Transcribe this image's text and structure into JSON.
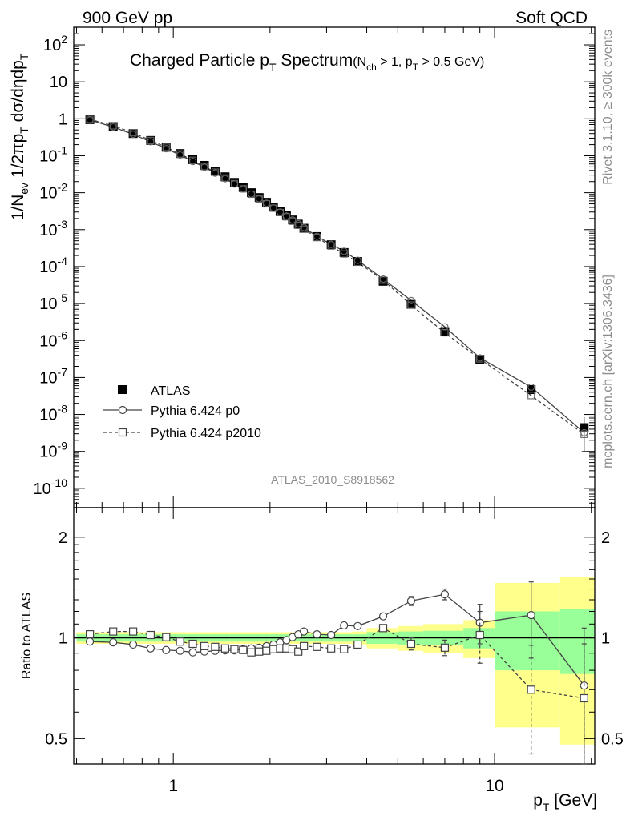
{
  "header": {
    "left": "900 GeV pp",
    "right": "Soft QCD"
  },
  "side": {
    "rivet": "Rivet 3.1.10, ≥ 300k events",
    "mcplots": "mcplots.cern.ch [arXiv:1306.3436]"
  },
  "main_title": {
    "text": "Charged Particle p",
    "sub": "T",
    "rest": " Spectrum",
    "cond_a": "(N",
    "cond_sub": "ch",
    "cond_b": " > 1, p",
    "cond_sub2": "T",
    "cond_c": " > 0.5 GeV)"
  },
  "analysis_id": "ATLAS_2010_S8918562",
  "ylabel_main": {
    "a": "1/N",
    "s1": "ev",
    "b": " 1/2πp",
    "s2": "T",
    "c": " dσ/dηdp",
    "s3": "T"
  },
  "ylabel_ratio": "Ratio to ATLAS",
  "xlabel": {
    "a": "p",
    "s": "T",
    "b": "  [GeV]"
  },
  "legend": {
    "placement": "bottom-left",
    "entries": [
      {
        "name": "ATLAS",
        "style": "filled-square"
      },
      {
        "name": "Pythia 6.424 p0",
        "style": "solid-circle"
      },
      {
        "name": "Pythia 6.424 p2010",
        "style": "dashed-open-square"
      }
    ]
  },
  "colors": {
    "band_inner": "#99ff99",
    "band_outer": "#ffff8c",
    "line": "#444444"
  },
  "chart_data": [
    {
      "type": "scatter",
      "panel": "spectrum",
      "x_scale": "log",
      "y_scale": "log",
      "xlim": [
        0.49,
        20.5
      ],
      "ylim": [
        3e-11,
        300
      ],
      "xticks": [
        1,
        10
      ],
      "xtick_labels": [
        "1",
        "10"
      ],
      "yticks": [
        1e-10,
        1e-09,
        1e-08,
        1e-07,
        1e-06,
        1e-05,
        0.0001,
        0.001,
        0.01,
        0.1,
        1,
        10,
        100
      ],
      "ytick_labels": [
        {
          "b": "10",
          "e": "-10"
        },
        {
          "b": "10",
          "e": "-9"
        },
        {
          "b": "10",
          "e": "-8"
        },
        {
          "b": "10",
          "e": "-7"
        },
        {
          "b": "10",
          "e": "-6"
        },
        {
          "b": "10",
          "e": "-5"
        },
        {
          "b": "10",
          "e": "-4"
        },
        {
          "b": "10",
          "e": "-3"
        },
        {
          "b": "10",
          "e": "-2"
        },
        {
          "b": "10",
          "e": "-1"
        },
        {
          "b": "1",
          "e": ""
        },
        {
          "b": "10",
          "e": ""
        },
        {
          "b": "10",
          "e": "2"
        }
      ],
      "x": [
        0.55,
        0.65,
        0.75,
        0.85,
        0.95,
        1.05,
        1.15,
        1.25,
        1.35,
        1.45,
        1.55,
        1.65,
        1.75,
        1.85,
        1.95,
        2.05,
        2.15,
        2.25,
        2.35,
        2.45,
        2.55,
        2.8,
        3.1,
        3.4,
        3.75,
        4.5,
        5.5,
        7.0,
        9.0,
        13.0,
        19.0
      ],
      "series": [
        {
          "name": "ATLAS",
          "values": [
            0.95,
            0.62,
            0.4,
            0.26,
            0.17,
            0.115,
            0.078,
            0.055,
            0.038,
            0.027,
            0.019,
            0.0138,
            0.01,
            0.0074,
            0.0055,
            0.0041,
            0.0031,
            0.0024,
            0.00183,
            0.00141,
            0.00109,
            0.00065,
            0.00039,
            0.00024,
            0.000138,
            4e-05,
            9.5e-06,
            1.75e-06,
            3.1e-07,
            4.7e-08,
            4.4e-09
          ]
        },
        {
          "name": "Pythia 6.424 p0",
          "values": [
            0.93,
            0.6,
            0.38,
            0.24,
            0.155,
            0.105,
            0.07,
            0.049,
            0.034,
            0.024,
            0.0172,
            0.0126,
            0.0092,
            0.0069,
            0.0052,
            0.0039,
            0.003,
            0.00235,
            0.00183,
            0.00144,
            0.00114,
            0.00066,
            0.0004,
            0.00026,
            0.000148,
            4.6e-05,
            1.21e-05,
            2.35e-06,
            3.4e-07,
            5.5e-08,
            3.2e-09
          ]
        },
        {
          "name": "Pythia 6.424 p2010",
          "values": [
            0.97,
            0.65,
            0.42,
            0.26,
            0.17,
            0.112,
            0.075,
            0.051,
            0.036,
            0.025,
            0.0175,
            0.0127,
            0.0091,
            0.0067,
            0.005,
            0.0038,
            0.0029,
            0.00222,
            0.00169,
            0.00131,
            0.00103,
            0.00061,
            0.00036,
            0.00022,
            0.000131,
            4.3e-05,
            9.1e-06,
            1.62e-06,
            3.2e-07,
            3.25e-08,
            2.9e-09
          ]
        }
      ]
    },
    {
      "type": "scatter",
      "panel": "ratio",
      "x_scale": "log",
      "y_scale": "log",
      "xlim": [
        0.49,
        20.5
      ],
      "ylim": [
        0.42,
        2.45
      ],
      "yticks": [
        0.5,
        1,
        2
      ],
      "ytick_labels": [
        "0.5",
        "1",
        "2"
      ],
      "x": [
        0.55,
        0.65,
        0.75,
        0.85,
        0.95,
        1.05,
        1.15,
        1.25,
        1.35,
        1.45,
        1.55,
        1.65,
        1.75,
        1.85,
        1.95,
        2.05,
        2.15,
        2.25,
        2.35,
        2.45,
        2.55,
        2.8,
        3.1,
        3.4,
        3.75,
        4.5,
        5.5,
        7.0,
        9.0,
        13.0,
        19.0
      ],
      "bin_edges": [
        0.5,
        0.6,
        0.7,
        0.8,
        0.9,
        1.0,
        1.1,
        1.2,
        1.3,
        1.4,
        1.5,
        1.6,
        1.7,
        1.8,
        1.9,
        2.0,
        2.1,
        2.2,
        2.3,
        2.4,
        2.5,
        2.6,
        3.0,
        3.2,
        3.6,
        4.0,
        5.0,
        6.0,
        8.0,
        10.0,
        16.0,
        22.0
      ],
      "band_inner": [
        0.025,
        0.025,
        0.025,
        0.025,
        0.025,
        0.025,
        0.025,
        0.025,
        0.025,
        0.025,
        0.025,
        0.025,
        0.025,
        0.025,
        0.025,
        0.025,
        0.025,
        0.025,
        0.025,
        0.025,
        0.025,
        0.025,
        0.025,
        0.025,
        0.025,
        0.04,
        0.045,
        0.05,
        0.07,
        0.2,
        0.22
      ],
      "band_outer": [
        0.04,
        0.04,
        0.04,
        0.04,
        0.04,
        0.04,
        0.04,
        0.04,
        0.04,
        0.04,
        0.04,
        0.04,
        0.04,
        0.04,
        0.04,
        0.04,
        0.04,
        0.04,
        0.04,
        0.04,
        0.04,
        0.04,
        0.04,
        0.04,
        0.045,
        0.07,
        0.085,
        0.1,
        0.13,
        0.46,
        0.52
      ],
      "series": [
        {
          "name": "Pythia 6.424 p0",
          "values": [
            0.975,
            0.97,
            0.955,
            0.93,
            0.92,
            0.915,
            0.905,
            0.91,
            0.915,
            0.918,
            0.918,
            0.925,
            0.93,
            0.935,
            0.945,
            0.955,
            0.97,
            0.985,
            1.005,
            1.025,
            1.045,
            1.025,
            1.02,
            1.09,
            1.085,
            1.16,
            1.29,
            1.35,
            1.11,
            1.17,
            0.72
          ],
          "errors": [
            0,
            0,
            0,
            0,
            0,
            0,
            0,
            0,
            0,
            0,
            0,
            0,
            0,
            0,
            0,
            0,
            0,
            0,
            0,
            0,
            0,
            0,
            0,
            0,
            0,
            0,
            0.04,
            0.05,
            0.15,
            0.3,
            0.35
          ]
        },
        {
          "name": "Pythia 6.424 p2010",
          "values": [
            1.025,
            1.045,
            1.045,
            1.02,
            1.005,
            0.975,
            0.96,
            0.945,
            0.94,
            0.93,
            0.925,
            0.92,
            0.905,
            0.91,
            0.915,
            0.925,
            0.93,
            0.93,
            0.925,
            0.91,
            0.945,
            0.94,
            0.93,
            0.925,
            0.955,
            1.07,
            0.96,
            0.935,
            1.02,
            0.7,
            0.66
          ],
          "errors": [
            0,
            0,
            0,
            0,
            0,
            0,
            0,
            0,
            0,
            0,
            0,
            0,
            0,
            0,
            0,
            0,
            0,
            0,
            0,
            0,
            0,
            0,
            0,
            0,
            0,
            0,
            0.04,
            0.05,
            0.18,
            0.25,
            0.3
          ]
        }
      ]
    }
  ]
}
